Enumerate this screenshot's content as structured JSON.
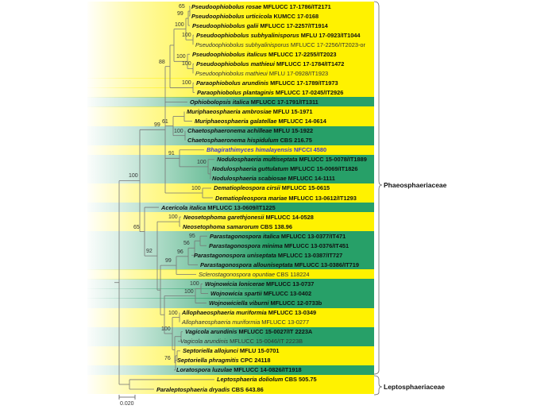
{
  "leaves": [
    {
      "species": "Pseudoophiobolus rosae",
      "voucher": "MFLUCC 17-1786/IT2171",
      "style": "bold",
      "band": "yellow"
    },
    {
      "species": "Pseudoophiobolus urticicola",
      "voucher": "KUMCC 17-0168",
      "style": "bold",
      "band": "yellow"
    },
    {
      "species": "Pseudoophiobolus galii",
      "voucher": "MFLUCC 17-2257/IT1914",
      "style": "bold",
      "band": "yellow"
    },
    {
      "species": "Pseudoophiobolus subhyalinisporus",
      "voucher": "MFLU 17-0923/IT1044",
      "style": "bold",
      "band": "yellow"
    },
    {
      "species": "Pseudoophiobolus subhyalinisporus",
      "voucher": "MFLUCC 17-2256/IT2023-or",
      "style": "plain",
      "band": "yellow"
    },
    {
      "species": "Pseudoophiobolus italicus",
      "voucher": "MFLUCC 17-2255/IT2023",
      "style": "bold",
      "band": "yellow"
    },
    {
      "species": "Pseudoophiobolus mathieui",
      "voucher": "MFLUCC 17-1784/IT1472",
      "style": "bold",
      "band": "yellow"
    },
    {
      "species": "Pseudoophiobolus mathieui",
      "voucher": "MFLU 17-0928/IT1923",
      "style": "plain",
      "band": "yellow"
    },
    {
      "species": "Paraophiobolus arundinis",
      "voucher": "MFLUCC 17-1789/IT1973",
      "style": "bold",
      "band": "yellow"
    },
    {
      "species": "Paraophiobolus plantaginis",
      "voucher": "MFLUCC 17-0245/IT2926",
      "style": "bold",
      "band": "yellow"
    },
    {
      "species": "Ophiobolopsis italica",
      "voucher": "MFLUCC 17-1791/IT1311",
      "style": "bold",
      "band": "green"
    },
    {
      "species": "Muriphaeosphaeria ambrosiae",
      "voucher": "MFLU 15-1971",
      "style": "bold",
      "band": "yellow"
    },
    {
      "species": "Muriphaeosphaeria galatellae",
      "voucher": "MFLUCC 14-0614",
      "style": "bold",
      "band": "yellow"
    },
    {
      "species": "Chaetosphaeronema achilleae",
      "voucher": "MFLU 15-1922",
      "style": "bold",
      "band": "green"
    },
    {
      "species": "Chaetosphaeronema hispidulum",
      "voucher": "CBS 216.75",
      "style": "bold",
      "band": "green"
    },
    {
      "species": "Bhagirathimyces himalayensis",
      "voucher": "NFCCI 4580",
      "style": "blue",
      "band": "yellow"
    },
    {
      "species": "Nodulosphaeria multiseptata",
      "voucher": "MFLUCC 15-0078/IT1889",
      "style": "bold",
      "band": "green"
    },
    {
      "species": "Nodulosphaeria guttulatum",
      "voucher": "MFLUCC 15-0069/IT1826",
      "style": "bold",
      "band": "green"
    },
    {
      "species": "Nodulosphaeria scabiosae",
      "voucher": "MFLUCC 14-1111",
      "style": "bold",
      "band": "green"
    },
    {
      "species": "Dematiopleospora cirsii",
      "voucher": "MFLUCC 15-0615",
      "style": "bold",
      "band": "yellow"
    },
    {
      "species": "Dematiopleospora mariae",
      "voucher": "MFLUCC 13-0612/IT1293",
      "style": "bold",
      "band": "yellow"
    },
    {
      "species": "Acericola italica",
      "voucher": "MFLUCC 13-0609/IT1225",
      "style": "bold",
      "band": "green"
    },
    {
      "species": "Neosetophoma garethjonesii",
      "voucher": "MFLUCC 14-0528",
      "style": "bold",
      "band": "yellow"
    },
    {
      "species": "Neosetophoma samarorum",
      "voucher": "CBS 138.96",
      "style": "bold",
      "band": "yellow"
    },
    {
      "species": "Parastagonospora italica",
      "voucher": "MFLUCC 13-0377/IT471",
      "style": "bold",
      "band": "green"
    },
    {
      "species": "Parastagonospora minima",
      "voucher": "MFLUCC 13-0376/IT451",
      "style": "bold",
      "band": "green"
    },
    {
      "species": "Parastagonospora uniseptata",
      "voucher": "MFLUCC 13-0387/IT727",
      "style": "bold",
      "band": "green"
    },
    {
      "species": "Parastagonospora allouniseptata",
      "voucher": "MFLUCC 13-0386/IT719",
      "style": "bold",
      "band": "green"
    },
    {
      "species": "Sclerostagonospora opuntiae",
      "voucher": "CBS 118224",
      "style": "plain",
      "band": "yellow"
    },
    {
      "species": "Wojnowicia lonicerae",
      "voucher": "MFLUCC 13-0737",
      "style": "bold",
      "band": "green"
    },
    {
      "species": "Wojnowicia spartii",
      "voucher": "MFLUCC 13-0402",
      "style": "bold",
      "band": "green"
    },
    {
      "species": "Wojnowiciella viburni",
      "voucher": "MFLUCC 12-0733b",
      "style": "bold",
      "band": "green"
    },
    {
      "species": "Allophaeosphaeria muriformia",
      "voucher": "MFLUCC 13-0349",
      "style": "bold",
      "band": "yellow"
    },
    {
      "species": "Allophaeosphaeria muriformia",
      "voucher": "MFLUCC 13-0277",
      "style": "plain",
      "band": "yellow"
    },
    {
      "species": "Vagicola arundinis",
      "voucher": "MFLUCC 15-0027/IT 2223A",
      "style": "bold",
      "band": "green"
    },
    {
      "species": "Vagicola arundinis",
      "voucher": "MFLUCC 15-0046/IT 2223B",
      "style": "plain",
      "band": "green"
    },
    {
      "species": "Septoriella allojunci",
      "voucher": "MFLU 15-0701",
      "style": "bold",
      "band": "yellow"
    },
    {
      "species": "Septoriella phragmitis",
      "voucher": "CPC 24118",
      "style": "bold",
      "band": "yellow"
    },
    {
      "species": "Loratospora luzulae",
      "voucher": "MFLUCC 14-0826/IT1918",
      "style": "bold",
      "band": "green"
    },
    {
      "species": "Leptosphaeria doliolum",
      "voucher": "CBS 505.75",
      "style": "bold",
      "band": "yellow"
    },
    {
      "species": "Paraleptosphaeria dryadis",
      "voucher": "CBS 643.86",
      "style": "bold",
      "band": "yellow"
    }
  ],
  "tree": {
    "id": "root",
    "support": "",
    "children": [
      {
        "id": "phaeo",
        "support": "100",
        "children": [
          {
            "id": "a99",
            "support": "99",
            "children": [
              {
                "id": "c88",
                "support": "88",
                "children": [
                  {
                    "id": "p100",
                    "support": "",
                    "children": [
                      {
                        "id": "pg",
                        "support": "100",
                        "children": [
                          {
                            "id": "pu",
                            "support": "99",
                            "children": [
                              {
                                "id": "pr",
                                "support": "65",
                                "children": [
                                  {
                                    "leaf": 0
                                  },
                                  {
                                    "leaf": 1
                                  }
                                ]
                              },
                              {
                                "leaf": 2
                              }
                            ]
                          },
                          {
                            "id": "ps",
                            "support": "100",
                            "children": [
                              {
                                "leaf": 3
                              },
                              {
                                "leaf": 4
                              }
                            ]
                          }
                        ]
                      },
                      {
                        "id": "pm",
                        "support": "100",
                        "children": [
                          {
                            "leaf": 5
                          },
                          {
                            "id": "pmm",
                            "support": "100",
                            "children": [
                              {
                                "leaf": 6
                              },
                              {
                                "leaf": 7
                              }
                            ]
                          }
                        ]
                      }
                    ]
                  },
                  {
                    "id": "para",
                    "support": "100",
                    "children": [
                      {
                        "leaf": 8
                      },
                      {
                        "leaf": 9
                      }
                    ]
                  }
                ]
              },
              {
                "leaf": 10
              },
              {
                "id": "m61",
                "support": "61",
                "children": [
                  {
                    "id": "mu",
                    "support": "",
                    "children": [
                      {
                        "leaf": 11
                      },
                      {
                        "leaf": 12
                      }
                    ]
                  },
                  {
                    "id": "ch",
                    "support": "100",
                    "children": [
                      {
                        "leaf": 13
                      },
                      {
                        "leaf": 14
                      }
                    ]
                  }
                ]
              },
              {
                "id": "n91",
                "support": "91",
                "children": [
                  {
                    "leaf": 15
                  },
                  {
                    "id": "no",
                    "support": "100",
                    "children": [
                      {
                        "leaf": 16
                      },
                      {
                        "id": "ng",
                        "support": "",
                        "children": [
                          {
                            "leaf": 17
                          },
                          {
                            "leaf": 18
                          }
                        ]
                      }
                    ]
                  }
                ]
              },
              {
                "id": "dem",
                "support": "100",
                "children": [
                  {
                    "leaf": 19
                  },
                  {
                    "leaf": 20
                  }
                ]
              }
            ]
          },
          {
            "id": "b65",
            "support": "65",
            "children": [
              {
                "leaf": 21
              },
              {
                "id": "e92",
                "support": "92",
                "children": [
                  {
                    "id": "neo",
                    "support": "100",
                    "children": [
                      {
                        "leaf": 22
                      },
                      {
                        "leaf": 23
                      }
                    ]
                  },
                  {
                    "id": "f",
                    "support": "",
                    "children": [
                      {
                        "id": "g99",
                        "support": "99",
                        "children": [
                          {
                            "id": "k96",
                            "support": "96",
                            "children": [
                              {
                                "id": "l56",
                                "support": "56",
                                "children": [
                                  {
                                    "id": "m95",
                                    "support": "95",
                                    "children": [
                                      {
                                        "leaf": 24
                                      },
                                      {
                                        "leaf": 25
                                      }
                                    ]
                                  },
                                  {
                                    "leaf": 26
                                  }
                                ]
                              },
                              {
                                "leaf": 27
                              }
                            ]
                          },
                          {
                            "leaf": 28
                          }
                        ]
                      },
                      {
                        "id": "h",
                        "support": "",
                        "children": [
                          {
                            "id": "wo",
                            "support": "100",
                            "children": [
                              {
                                "id": "wl",
                                "support": "100",
                                "children": [
                                  {
                                    "leaf": 29
                                  },
                                  {
                                    "leaf": 30
                                  }
                                ]
                              },
                              {
                                "leaf": 31
                              }
                            ]
                          },
                          {
                            "id": "i100",
                            "support": "100",
                            "children": [
                              {
                                "id": "allo",
                                "support": "100",
                                "children": [
                                  {
                                    "leaf": 32
                                  },
                                  {
                                    "leaf": 33
                                  }
                                ]
                              },
                              {
                                "id": "j",
                                "support": "",
                                "children": [
                                  {
                                    "id": "vag",
                                    "support": "",
                                    "children": [
                                      {
                                        "leaf": 34
                                      },
                                      {
                                        "leaf": 35
                                      }
                                    ]
                                  },
                                  {
                                    "id": "s76",
                                    "support": "76",
                                    "children": [
                                      {
                                        "id": "sep",
                                        "support": "",
                                        "children": [
                                          {
                                            "leaf": 36
                                          },
                                          {
                                            "leaf": 37
                                          }
                                        ]
                                      },
                                      {
                                        "leaf": 38
                                      }
                                    ]
                                  }
                                ]
                              }
                            ]
                          }
                        ]
                      }
                    ]
                  }
                ]
              }
            ]
          }
        ]
      },
      {
        "id": "lepto",
        "support": "",
        "children": [
          {
            "leaf": 39
          },
          {
            "leaf": 40
          }
        ]
      }
    ]
  },
  "families": [
    {
      "name": "Phaeosphaeriaceae"
    },
    {
      "name": "Leptosphaeriaceae"
    }
  ],
  "scale_bar": {
    "label": "0.020",
    "value": 0.02
  },
  "colors": {
    "yellow": "#fff200",
    "green": "#27a068",
    "highlight": "#3a3ad0"
  }
}
